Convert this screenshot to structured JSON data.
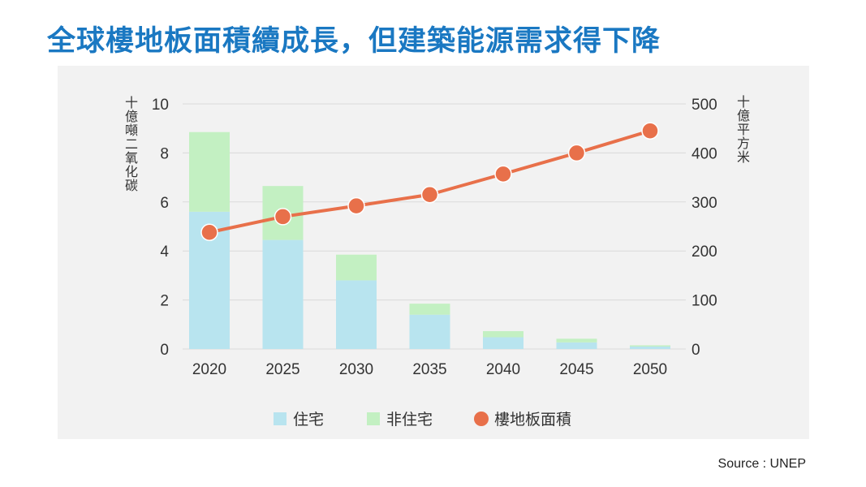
{
  "title": "全球樓地板面積續成長，但建築能源需求得下降",
  "source": "Source : UNEP",
  "colors": {
    "title": "#1a78c2",
    "residential": "#b8e4ef",
    "non_residential": "#c3f0c2",
    "floor_area": "#e8704a",
    "grid": "#d9d9d9"
  },
  "chart_data": {
    "type": "bar",
    "stacked": true,
    "categories": [
      "2020",
      "2025",
      "2030",
      "2035",
      "2040",
      "2045",
      "2050"
    ],
    "series": [
      {
        "name": "住宅",
        "type": "bar",
        "axis": "left",
        "values": [
          5.6,
          4.45,
          2.8,
          1.4,
          0.48,
          0.27,
          0.1
        ]
      },
      {
        "name": "非住宅",
        "type": "bar",
        "axis": "left",
        "values": [
          3.25,
          2.2,
          1.05,
          0.45,
          0.25,
          0.15,
          0.05
        ]
      },
      {
        "name": "樓地板面積",
        "type": "line",
        "axis": "right",
        "values": [
          238,
          270,
          292,
          315,
          357,
          400,
          445
        ]
      }
    ],
    "y_left": {
      "label": "十億噸二氧化碳",
      "range": [
        0,
        10
      ],
      "ticks": [
        "0",
        "2",
        "4",
        "6",
        "8",
        "10"
      ]
    },
    "y_right": {
      "label": "十億平方米",
      "range": [
        0,
        500
      ],
      "ticks": [
        "0",
        "100",
        "200",
        "300",
        "400",
        "500"
      ]
    },
    "grid": true,
    "legend_position": "bottom"
  }
}
